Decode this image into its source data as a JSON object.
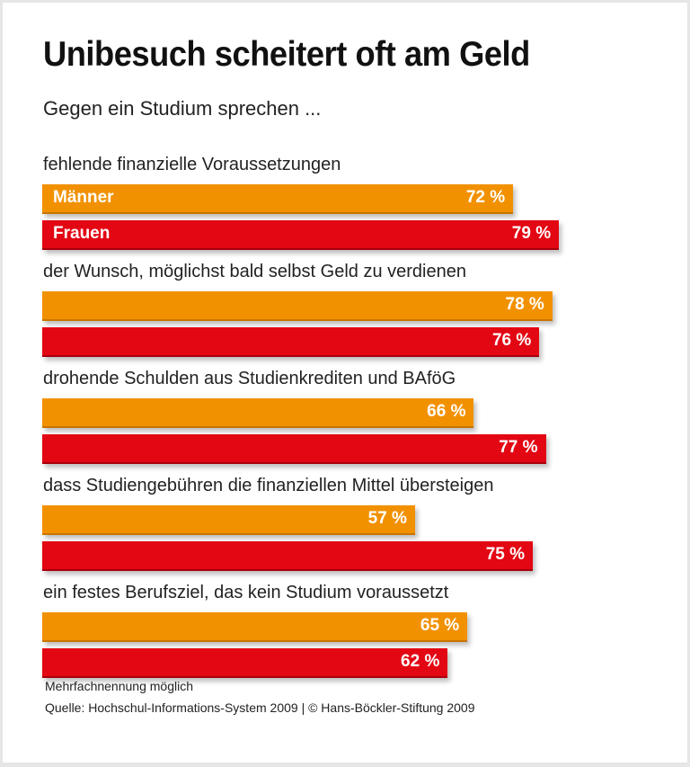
{
  "chart_data": {
    "type": "bar",
    "orientation": "horizontal",
    "title": "Unibesuch scheitert oft am Geld",
    "subtitle": "Gegen ein Studium sprechen ...",
    "categories": [
      "fehlende finanzielle Voraussetzungen",
      "der Wunsch, möglichst bald selbst Geld zu verdienen",
      "drohende Schulden aus Studienkrediten und BAföG",
      "dass Studiengebühren die finanziellen Mittel übersteigen",
      "ein festes Berufsziel, das kein Studium voraussetzt"
    ],
    "series": [
      {
        "name": "Männer",
        "color": "#f29100",
        "values": [
          72,
          78,
          66,
          57,
          65
        ]
      },
      {
        "name": "Frauen",
        "color": "#e30613",
        "values": [
          79,
          76,
          77,
          75,
          62
        ]
      }
    ],
    "unit": "%",
    "xlim": [
      0,
      100
    ],
    "grid": false,
    "notes": [
      "Mehrfachnennung möglich",
      "Quelle: Hochschul-Informations-System 2009 | © Hans-Böckler-Stiftung 2009"
    ]
  }
}
